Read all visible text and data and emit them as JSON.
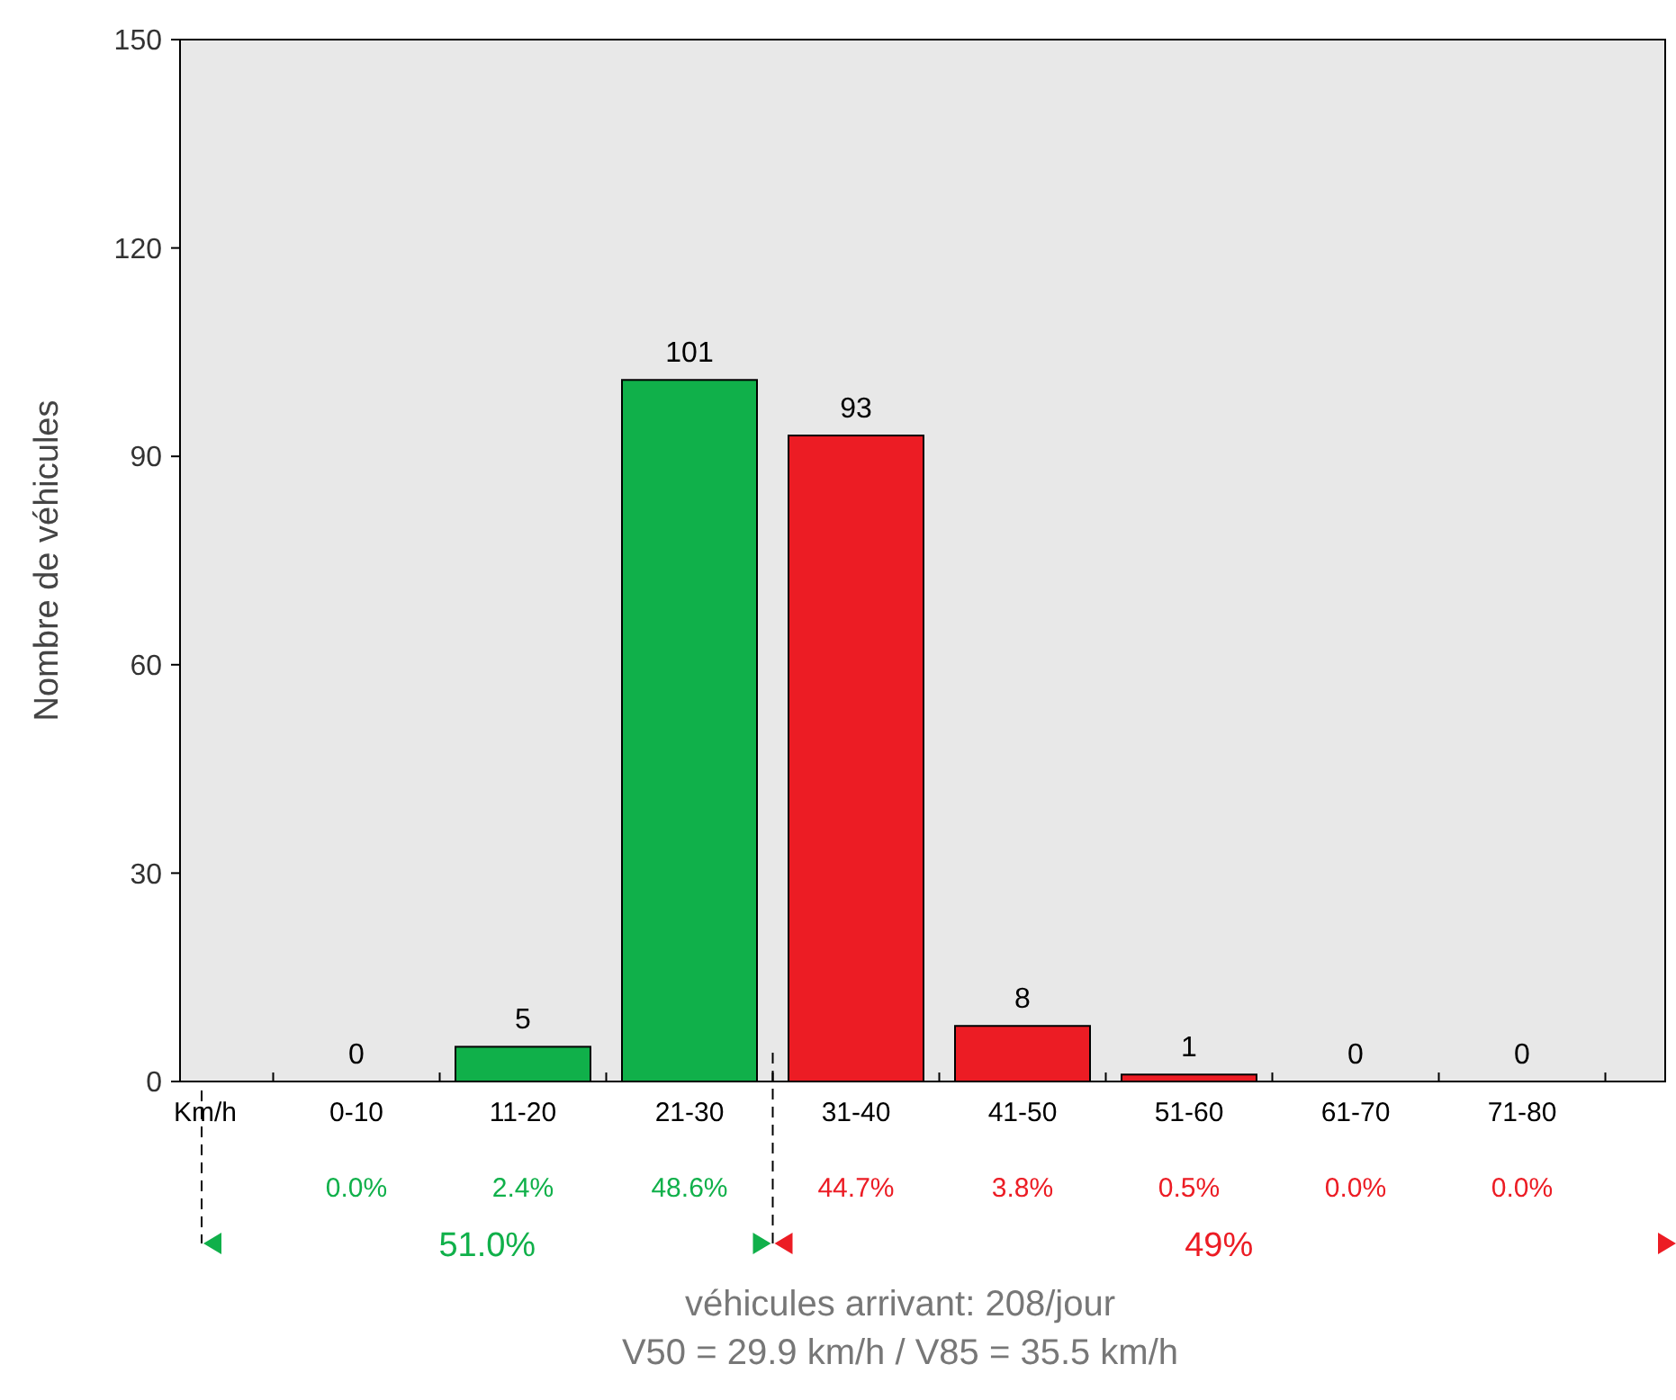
{
  "chart_data": {
    "type": "bar",
    "xlabel": "Km/h",
    "ylabel": "Nombre de véhicules",
    "categories": [
      "0-10",
      "11-20",
      "21-30",
      "31-40",
      "41-50",
      "51-60",
      "61-70",
      "71-80"
    ],
    "values": [
      0,
      5,
      101,
      93,
      8,
      1,
      0,
      0
    ],
    "colors": [
      "#10b04a",
      "#10b04a",
      "#10b04a",
      "#ec1c24",
      "#ec1c24",
      "#ec1c24",
      "#ec1c24",
      "#ec1c24"
    ],
    "ylim": [
      0,
      150
    ],
    "yticks": [
      0,
      30,
      60,
      90,
      120,
      150
    ],
    "grid": false,
    "data_labels": true,
    "annotations": [
      "0.0%",
      "2.4%",
      "48.6%",
      "44.7%",
      "3.8%",
      "0.5%",
      "0.0%",
      "0.0%",
      "51.0%",
      "49%",
      "véhicules arrivant: 208/jour",
      "V50 = 29.9 km/h    /    V85 = 35.5 km/h"
    ]
  }
}
